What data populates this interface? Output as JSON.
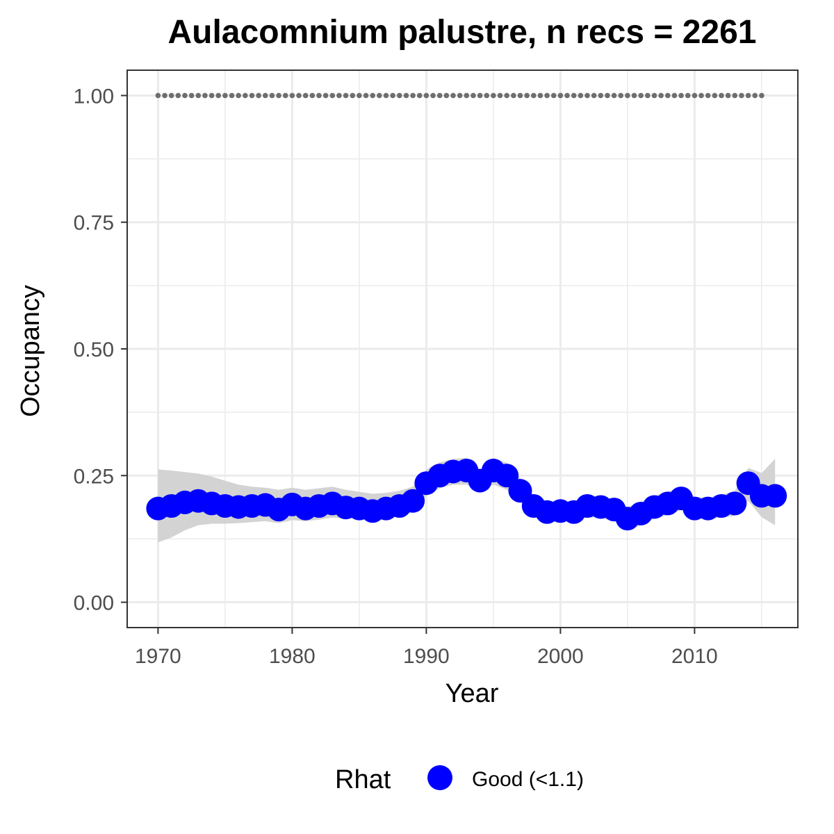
{
  "chart_data": {
    "type": "line",
    "title": "Aulacomnium palustre, n recs = 2261",
    "xlabel": "Year",
    "ylabel": "Occupancy",
    "xlim": [
      1967.7,
      2017.7
    ],
    "ylim": [
      -0.05,
      1.05
    ],
    "x_ticks": [
      1970,
      1980,
      1990,
      2000,
      2010
    ],
    "x_tick_labels": [
      "1970",
      "1980",
      "1990",
      "2000",
      "2010"
    ],
    "y_ticks": [
      0,
      0.25,
      0.5,
      0.75,
      1.0
    ],
    "y_tick_labels": [
      "0.00",
      "0.25",
      "0.50",
      "0.75",
      "1.00"
    ],
    "grid": true,
    "legend": {
      "title": "Rhat",
      "position": "bottom",
      "entries": [
        {
          "label": "Good (<1.1)",
          "color": "#0000ff"
        }
      ]
    },
    "colors": {
      "points": "#0000ff",
      "ribbon": "#d3d3d3",
      "reference_dots": "#6e6e6e",
      "panel_border": "#333333",
      "grid": "#ebebeb"
    },
    "x": [
      1970,
      1971,
      1972,
      1973,
      1974,
      1975,
      1976,
      1977,
      1978,
      1979,
      1980,
      1981,
      1982,
      1983,
      1984,
      1985,
      1986,
      1987,
      1988,
      1989,
      1990,
      1991,
      1992,
      1993,
      1994,
      1995,
      1996,
      1997,
      1998,
      1999,
      2000,
      2001,
      2002,
      2003,
      2004,
      2005,
      2006,
      2007,
      2008,
      2009,
      2010,
      2011,
      2012,
      2013,
      2014,
      2015,
      2016
    ],
    "series": [
      {
        "values": [
          0.185,
          0.19,
          0.197,
          0.2,
          0.195,
          0.19,
          0.188,
          0.19,
          0.192,
          0.183,
          0.193,
          0.185,
          0.19,
          0.195,
          0.187,
          0.185,
          0.18,
          0.185,
          0.19,
          0.2,
          0.235,
          0.25,
          0.258,
          0.26,
          0.24,
          0.26,
          0.25,
          0.22,
          0.19,
          0.178,
          0.18,
          0.178,
          0.19,
          0.188,
          0.183,
          0.165,
          0.175,
          0.188,
          0.195,
          0.205,
          0.185,
          0.185,
          0.19,
          0.195,
          0.235,
          0.21,
          0.21
        ]
      }
    ],
    "ribbon": {
      "lower": [
        0.118,
        0.128,
        0.142,
        0.152,
        0.155,
        0.155,
        0.156,
        0.158,
        0.16,
        0.156,
        0.162,
        0.16,
        0.163,
        0.167,
        0.165,
        0.165,
        0.163,
        0.166,
        0.17,
        0.178,
        0.21,
        0.225,
        0.232,
        0.232,
        0.222,
        0.232,
        0.222,
        0.198,
        0.17,
        0.16,
        0.16,
        0.16,
        0.168,
        0.166,
        0.16,
        0.142,
        0.152,
        0.165,
        0.172,
        0.182,
        0.165,
        0.164,
        0.167,
        0.17,
        0.2,
        0.168,
        0.152
      ],
      "upper": [
        0.262,
        0.26,
        0.257,
        0.254,
        0.248,
        0.24,
        0.232,
        0.228,
        0.226,
        0.222,
        0.226,
        0.222,
        0.225,
        0.228,
        0.222,
        0.218,
        0.214,
        0.216,
        0.22,
        0.228,
        0.262,
        0.276,
        0.283,
        0.285,
        0.262,
        0.285,
        0.275,
        0.245,
        0.212,
        0.198,
        0.2,
        0.198,
        0.21,
        0.208,
        0.203,
        0.188,
        0.198,
        0.21,
        0.218,
        0.228,
        0.208,
        0.206,
        0.212,
        0.22,
        0.265,
        0.255,
        0.283
      ]
    },
    "reference_line": {
      "y": 1.0,
      "x_start": 1970,
      "x_end": 2015
    }
  }
}
